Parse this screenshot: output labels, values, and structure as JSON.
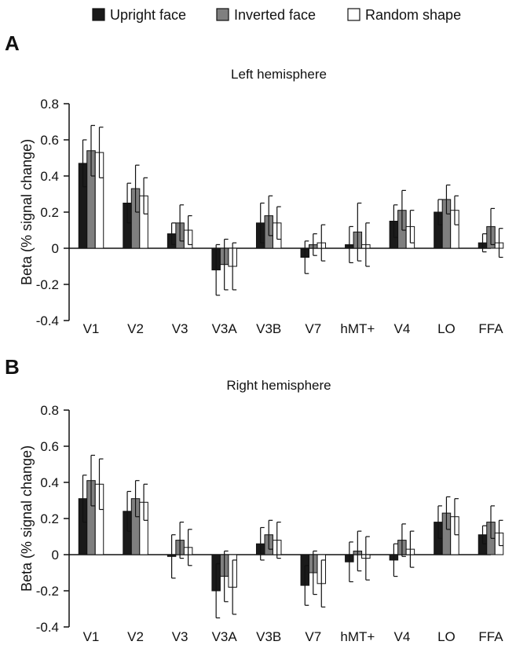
{
  "legend": [
    {
      "label": "Upright face",
      "color": "#1a1a1a"
    },
    {
      "label": "Inverted face",
      "color": "#7f7f7f"
    },
    {
      "label": "Random shape",
      "color": "#ffffff"
    }
  ],
  "chart_data": [
    {
      "type": "bar",
      "panel": "A",
      "title": "Left hemisphere",
      "xlabel": "",
      "ylabel": "Beta (% signal change)",
      "ylim": [
        -0.4,
        0.8
      ],
      "yticks": [
        -0.4,
        -0.2,
        0,
        0.2,
        0.4,
        0.6,
        0.8
      ],
      "ytick_labels": [
        "-0.4",
        "-0.2",
        "0",
        "0.2",
        "0.4",
        "0.6",
        "0.8"
      ],
      "categories": [
        "V1",
        "V2",
        "V3",
        "V3A",
        "V3B",
        "V7",
        "hMT+",
        "V4",
        "LO",
        "FFA"
      ],
      "legend_position": "top",
      "series": [
        {
          "name": "Upright face",
          "color": "#1a1a1a",
          "values": [
            0.47,
            0.25,
            0.08,
            -0.12,
            0.14,
            -0.05,
            0.02,
            0.15,
            0.2,
            0.03
          ],
          "errors": [
            0.13,
            0.11,
            0.06,
            0.14,
            0.11,
            0.09,
            0.1,
            0.09,
            0.07,
            0.05
          ]
        },
        {
          "name": "Inverted face",
          "color": "#7f7f7f",
          "values": [
            0.54,
            0.33,
            0.14,
            -0.09,
            0.18,
            0.02,
            0.09,
            0.21,
            0.27,
            0.12
          ],
          "errors": [
            0.14,
            0.13,
            0.1,
            0.14,
            0.11,
            0.06,
            0.16,
            0.11,
            0.08,
            0.1
          ]
        },
        {
          "name": "Random shape",
          "color": "#ffffff",
          "values": [
            0.53,
            0.29,
            0.1,
            -0.1,
            0.14,
            0.03,
            0.02,
            0.12,
            0.21,
            0.03
          ],
          "errors": [
            0.14,
            0.1,
            0.08,
            0.13,
            0.09,
            0.1,
            0.12,
            0.09,
            0.08,
            0.08
          ]
        }
      ]
    },
    {
      "type": "bar",
      "panel": "B",
      "title": "Right hemisphere",
      "xlabel": "",
      "ylabel": "Beta (% signal change)",
      "ylim": [
        -0.4,
        0.8
      ],
      "yticks": [
        -0.4,
        -0.2,
        0,
        0.2,
        0.4,
        0.6,
        0.8
      ],
      "ytick_labels": [
        "-0.4",
        "-0.2",
        "0",
        "0.2",
        "0.4",
        "0.6",
        "0.8"
      ],
      "categories": [
        "V1",
        "V2",
        "V3",
        "V3A",
        "V3B",
        "V7",
        "hMT+",
        "V4",
        "LO",
        "FFA"
      ],
      "legend_position": "top",
      "series": [
        {
          "name": "Upright face",
          "color": "#1a1a1a",
          "values": [
            0.31,
            0.24,
            -0.01,
            -0.2,
            0.06,
            -0.17,
            -0.04,
            -0.03,
            0.18,
            0.11
          ],
          "errors": [
            0.13,
            0.11,
            0.12,
            0.15,
            0.09,
            0.11,
            0.11,
            0.09,
            0.09,
            0.05
          ]
        },
        {
          "name": "Inverted face",
          "color": "#7f7f7f",
          "values": [
            0.41,
            0.31,
            0.08,
            -0.12,
            0.11,
            -0.1,
            0.02,
            0.08,
            0.23,
            0.18
          ],
          "errors": [
            0.14,
            0.1,
            0.1,
            0.14,
            0.08,
            0.12,
            0.11,
            0.09,
            0.09,
            0.09
          ]
        },
        {
          "name": "Random shape",
          "color": "#ffffff",
          "values": [
            0.39,
            0.29,
            0.04,
            -0.18,
            0.08,
            -0.16,
            -0.02,
            0.03,
            0.21,
            0.12
          ],
          "errors": [
            0.14,
            0.1,
            0.1,
            0.15,
            0.1,
            0.13,
            0.12,
            0.1,
            0.1,
            0.07
          ]
        }
      ]
    }
  ]
}
